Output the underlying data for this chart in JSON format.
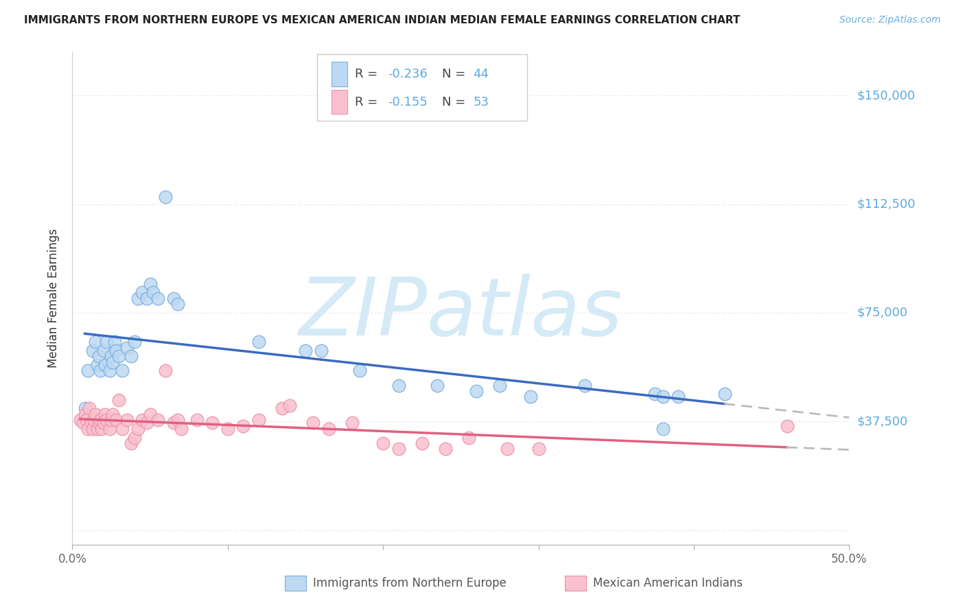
{
  "title": "IMMIGRANTS FROM NORTHERN EUROPE VS MEXICAN AMERICAN INDIAN MEDIAN FEMALE EARNINGS CORRELATION CHART",
  "source": "Source: ZipAtlas.com",
  "ylabel": "Median Female Earnings",
  "xlim": [
    0.0,
    0.5
  ],
  "ylim": [
    -5000,
    165000
  ],
  "ytick_vals": [
    0,
    37500,
    75000,
    112500,
    150000
  ],
  "xtick_vals": [
    0.0,
    0.1,
    0.2,
    0.3,
    0.4,
    0.5
  ],
  "xtick_labels": [
    "0.0%",
    "",
    "",
    "",
    "",
    "50.0%"
  ],
  "color_blue_fill": "#BDD9F2",
  "color_blue_edge": "#7AAEE0",
  "color_pink_fill": "#F9C0CF",
  "color_pink_edge": "#EF90A8",
  "color_blue_line": "#3A6BBF",
  "color_pink_line": "#E06080",
  "color_dashed": "#BBBBBB",
  "color_right_labels": "#5BAADE",
  "color_title": "#222222",
  "color_source": "#6AAEE0",
  "watermark_color": "#D5EAF7",
  "legend_R1": "-0.236",
  "legend_N1": "44",
  "legend_R2": "-0.155",
  "legend_N2": "53",
  "label_blue": "Immigrants from Northern Europe",
  "label_pink": "Mexican American Indians",
  "series1_x": [
    0.008,
    0.01,
    0.013,
    0.015,
    0.016,
    0.017,
    0.018,
    0.02,
    0.021,
    0.022,
    0.024,
    0.025,
    0.026,
    0.027,
    0.028,
    0.03,
    0.032,
    0.035,
    0.038,
    0.04,
    0.042,
    0.045,
    0.048,
    0.05,
    0.052,
    0.055,
    0.06,
    0.065,
    0.068,
    0.12,
    0.15,
    0.16,
    0.185,
    0.21,
    0.235,
    0.26,
    0.275,
    0.295,
    0.33,
    0.375,
    0.38,
    0.39,
    0.42,
    0.38
  ],
  "series1_y": [
    42000,
    55000,
    62000,
    65000,
    57000,
    60000,
    55000,
    62000,
    57000,
    65000,
    55000,
    60000,
    58000,
    65000,
    62000,
    60000,
    55000,
    63000,
    60000,
    65000,
    80000,
    82000,
    80000,
    85000,
    82000,
    80000,
    115000,
    80000,
    78000,
    65000,
    62000,
    62000,
    55000,
    50000,
    50000,
    48000,
    50000,
    46000,
    50000,
    47000,
    46000,
    46000,
    47000,
    35000
  ],
  "series2_x": [
    0.005,
    0.007,
    0.008,
    0.009,
    0.01,
    0.011,
    0.012,
    0.013,
    0.014,
    0.015,
    0.016,
    0.017,
    0.018,
    0.019,
    0.02,
    0.021,
    0.022,
    0.024,
    0.025,
    0.026,
    0.028,
    0.03,
    0.032,
    0.035,
    0.038,
    0.04,
    0.042,
    0.045,
    0.048,
    0.05,
    0.055,
    0.06,
    0.065,
    0.068,
    0.07,
    0.08,
    0.09,
    0.1,
    0.11,
    0.12,
    0.135,
    0.14,
    0.155,
    0.165,
    0.18,
    0.2,
    0.21,
    0.225,
    0.24,
    0.255,
    0.28,
    0.3,
    0.46
  ],
  "series2_y": [
    38000,
    37000,
    40000,
    38000,
    35000,
    42000,
    37000,
    35000,
    38000,
    40000,
    35000,
    37000,
    38000,
    35000,
    37000,
    40000,
    38000,
    35000,
    38000,
    40000,
    38000,
    45000,
    35000,
    38000,
    30000,
    32000,
    35000,
    38000,
    37000,
    40000,
    38000,
    55000,
    37000,
    38000,
    35000,
    38000,
    37000,
    35000,
    36000,
    38000,
    42000,
    43000,
    37000,
    35000,
    37000,
    30000,
    28000,
    30000,
    28000,
    32000,
    28000,
    28000,
    36000
  ]
}
